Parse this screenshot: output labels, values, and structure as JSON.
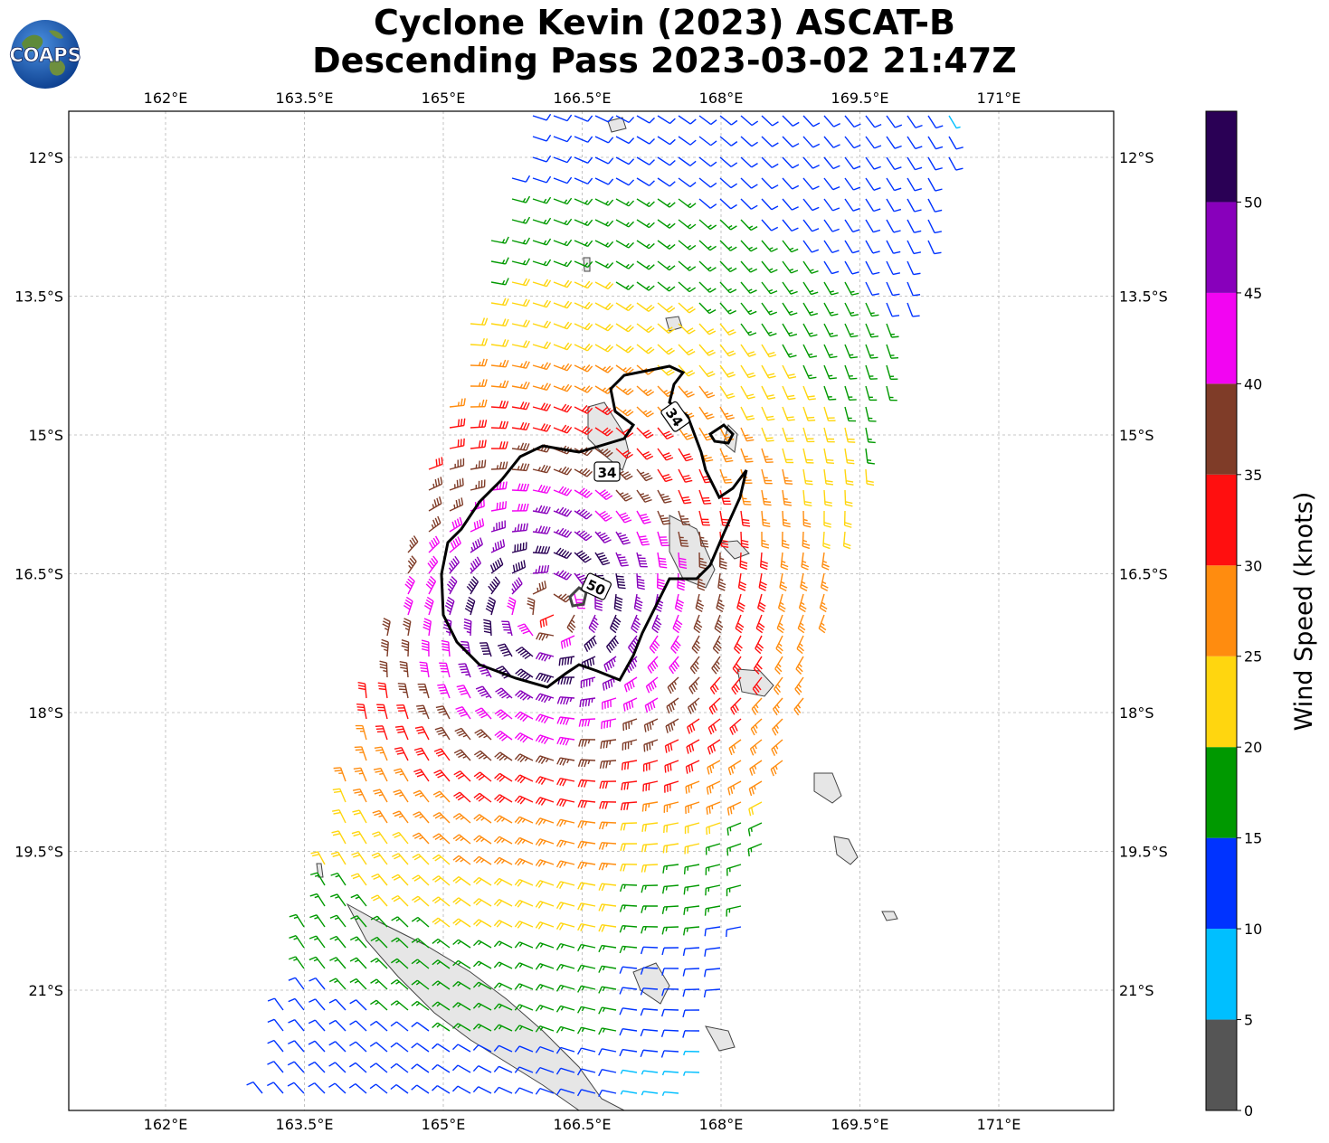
{
  "title": {
    "line1": "Cyclone Kevin (2023) ASCAT-B",
    "line2": "Descending Pass 2023-03-02 21:47Z"
  },
  "logo": {
    "text": "COAPS",
    "icon": "globe-logo-icon"
  },
  "map": {
    "lon_range": [
      161.0,
      172.3
    ],
    "lat_range": [
      -22.55,
      -11.75
    ],
    "lon_ticks": [
      "162°E",
      "163.5°E",
      "165°E",
      "166.5°E",
      "168°E",
      "169.5°E",
      "171°E"
    ],
    "lat_ticks": [
      "12°S",
      "13.5°S",
      "15°S",
      "16.5°S",
      "18°S",
      "19.5°S",
      "21°S"
    ],
    "grid": true,
    "contours": {
      "label_34_a": "34",
      "label_34_b": "34",
      "label_50": "50"
    },
    "storm_center": {
      "lon": 166.15,
      "lat": -16.9
    }
  },
  "colorbar": {
    "label": "Wind Speed (knots)",
    "tick_labels": [
      "0",
      "5",
      "10",
      "15",
      "20",
      "25",
      "30",
      "35",
      "40",
      "45",
      "50"
    ],
    "colors": [
      "#555555",
      "#00bfff",
      "#0033ff",
      "#009900",
      "#ffd60f",
      "#ff8c0f",
      "#ff0f0f",
      "#7f3c28",
      "#f205f2",
      "#8800bb",
      "#2a0055"
    ]
  }
}
